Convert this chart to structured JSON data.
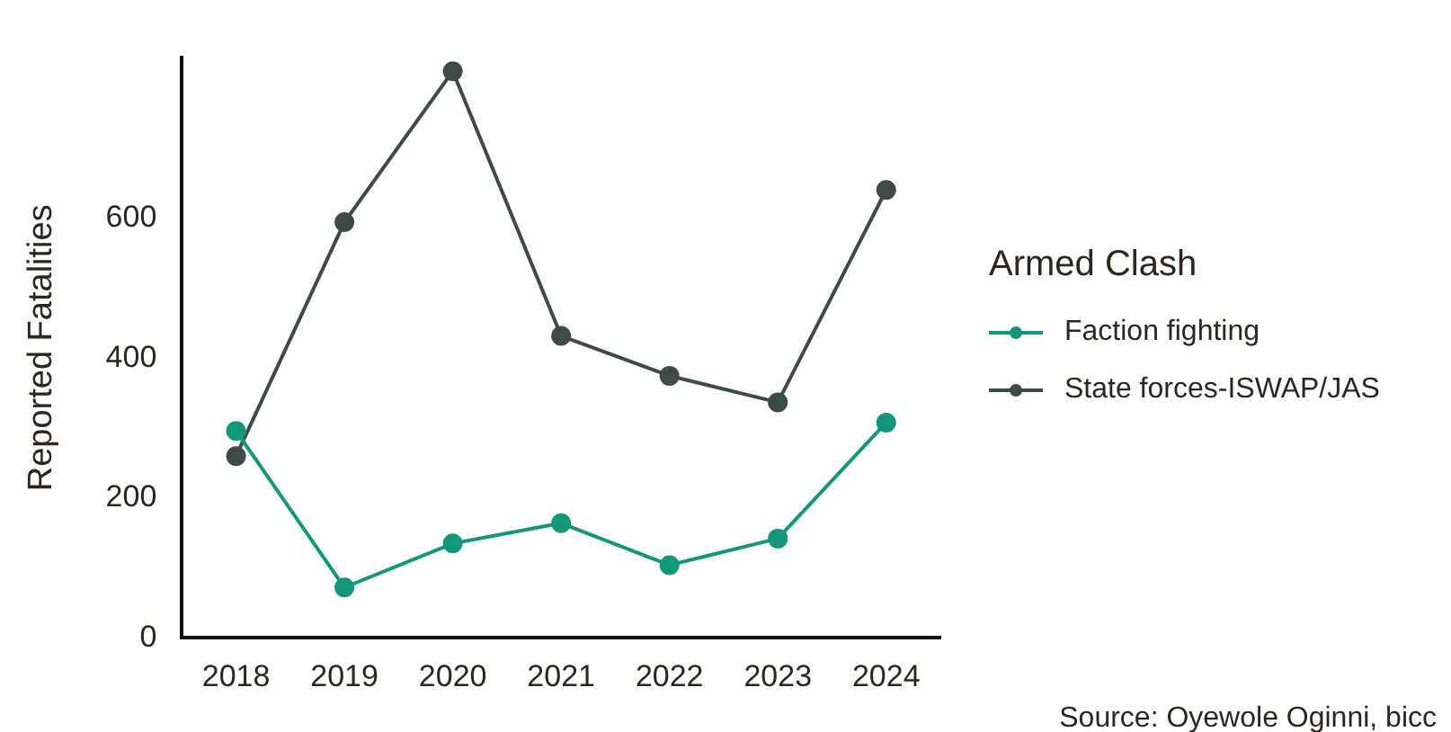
{
  "chart_data": {
    "type": "line",
    "ylabel": "Reported Fatalities",
    "legend_title": "Armed Clash",
    "legend": "right",
    "marker": "circle",
    "grid": false,
    "categories": [
      "2018",
      "2019",
      "2020",
      "2021",
      "2022",
      "2023",
      "2024"
    ],
    "ylim": [
      0,
      830
    ],
    "yticks": [
      0,
      200,
      400,
      600
    ],
    "series": [
      {
        "name": "Faction fighting",
        "color": "#14967a",
        "values": [
          296,
          72,
          135,
          164,
          104,
          142,
          308
        ]
      },
      {
        "name": "State forces-ISWAP/JAS",
        "color": "#3d4a47",
        "values": [
          260,
          595,
          811,
          432,
          375,
          337,
          641
        ]
      }
    ],
    "annotations": [
      "Source: Oyewole Oginni, bicc"
    ]
  }
}
